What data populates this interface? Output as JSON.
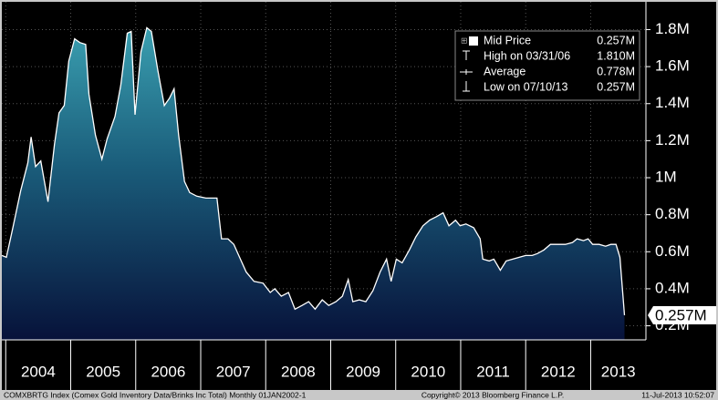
{
  "chart_data": {
    "type": "area",
    "series": [
      {
        "name": "Mid Price",
        "color": "#ffffff",
        "legend_value": "0.257M",
        "x": [
          2003.94,
          2004.01,
          2004.11,
          2004.23,
          2004.34,
          2004.39,
          2004.46,
          2004.54,
          2004.65,
          2004.75,
          2004.82,
          2004.9,
          2004.97,
          2005.06,
          2005.14,
          2005.23,
          2005.28,
          2005.38,
          2005.48,
          2005.56,
          2005.68,
          2005.77,
          2005.87,
          2005.93,
          2005.99,
          2006.08,
          2006.17,
          2006.24,
          2006.34,
          2006.44,
          2006.52,
          2006.59,
          2006.66,
          2006.75,
          2006.83,
          2006.94,
          2007.08,
          2007.25,
          2007.32,
          2007.42,
          2007.51,
          2007.61,
          2007.7,
          2007.82,
          2007.96,
          2008.07,
          2008.14,
          2008.24,
          2008.35,
          2008.45,
          2008.56,
          2008.66,
          2008.76,
          2008.87,
          2008.97,
          2009.08,
          2009.18,
          2009.27,
          2009.34,
          2009.44,
          2009.54,
          2009.65,
          2009.76,
          2009.86,
          2009.93,
          2010.01,
          2010.1,
          2010.21,
          2010.31,
          2010.42,
          2010.52,
          2010.63,
          2010.73,
          2010.82,
          2010.92,
          2010.99,
          2011.08,
          2011.2,
          2011.3,
          2011.34,
          2011.44,
          2011.51,
          2011.61,
          2011.7,
          2011.8,
          2011.9,
          2012.0,
          2012.1,
          2012.18,
          2012.28,
          2012.38,
          2012.49,
          2012.61,
          2012.72,
          2012.79,
          2012.89,
          2012.96,
          2013.03,
          2013.13,
          2013.23,
          2013.31,
          2013.39,
          2013.45,
          2013.52
        ],
        "values": [
          0.58,
          0.57,
          0.73,
          0.93,
          1.08,
          1.22,
          1.06,
          1.09,
          0.87,
          1.18,
          1.35,
          1.39,
          1.63,
          1.75,
          1.73,
          1.72,
          1.45,
          1.23,
          1.1,
          1.21,
          1.33,
          1.5,
          1.78,
          1.79,
          1.34,
          1.68,
          1.81,
          1.79,
          1.58,
          1.39,
          1.43,
          1.48,
          1.23,
          0.98,
          0.92,
          0.9,
          0.89,
          0.89,
          0.67,
          0.67,
          0.64,
          0.56,
          0.49,
          0.44,
          0.43,
          0.38,
          0.4,
          0.36,
          0.38,
          0.29,
          0.31,
          0.33,
          0.29,
          0.34,
          0.31,
          0.33,
          0.36,
          0.45,
          0.33,
          0.34,
          0.33,
          0.39,
          0.49,
          0.56,
          0.44,
          0.56,
          0.54,
          0.61,
          0.68,
          0.74,
          0.77,
          0.79,
          0.81,
          0.74,
          0.77,
          0.74,
          0.75,
          0.73,
          0.67,
          0.56,
          0.55,
          0.56,
          0.5,
          0.55,
          0.56,
          0.57,
          0.58,
          0.58,
          0.59,
          0.61,
          0.64,
          0.64,
          0.64,
          0.65,
          0.67,
          0.66,
          0.67,
          0.64,
          0.64,
          0.63,
          0.64,
          0.64,
          0.57,
          0.257
        ]
      }
    ],
    "last_value_label": "0.257M",
    "stats": [
      {
        "label": "High on 03/31/06",
        "value": "1.810M"
      },
      {
        "label": "Average",
        "value": "0.778M"
      },
      {
        "label": "Low on 07/10/13",
        "value": "0.257M"
      }
    ],
    "xlim": [
      2003.94,
      2013.85
    ],
    "xticks": [
      2004,
      2005,
      2006,
      2007,
      2008,
      2009,
      2010,
      2011,
      2012,
      2013
    ],
    "ylim": [
      0.124,
      1.95
    ],
    "yticks": [
      {
        "value": 0.2,
        "label": "0.2M"
      },
      {
        "value": 0.4,
        "label": "0.4M"
      },
      {
        "value": 0.6,
        "label": "0.6M"
      },
      {
        "value": 0.8,
        "label": "0.8M"
      },
      {
        "value": 1,
        "label": "1M"
      },
      {
        "value": 1.2,
        "label": "1.2M"
      },
      {
        "value": 1.4,
        "label": "1.4M"
      },
      {
        "value": 1.6,
        "label": "1.6M"
      },
      {
        "value": 1.8,
        "label": "1.8M"
      }
    ],
    "grid": true,
    "footer": {
      "left": "COMXBRTG Index (Comex Gold Inventory Data/Brinks Inc Total)  Monthly 01JAN2002-1",
      "center": "Copyright© 2013 Bloomberg Finance L.P.",
      "right": "11-Jul-2013 10:52:07"
    }
  }
}
